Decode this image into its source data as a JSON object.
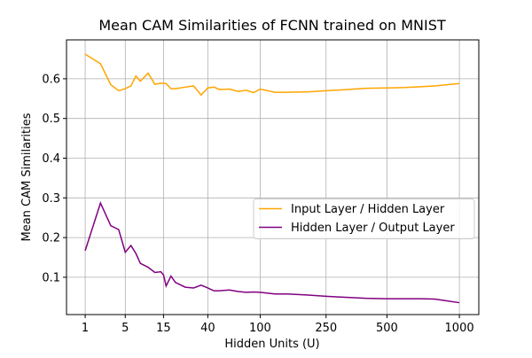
{
  "chart_data": {
    "type": "line",
    "title": "Mean CAM Similarities of FCNN trained on MNIST",
    "x_label": "Hidden Units (U)",
    "y_label": "Mean CAM Similarities",
    "x": [
      1,
      2,
      3,
      4,
      5,
      6,
      7,
      8,
      10,
      12,
      14,
      15,
      16,
      18,
      20,
      25,
      30,
      35,
      40,
      45,
      50,
      60,
      70,
      80,
      90,
      100,
      125,
      150,
      200,
      250,
      300,
      400,
      500,
      600,
      700,
      800,
      1000
    ],
    "series": [
      {
        "name": "Input Layer / Hidden Layer",
        "color": "#ffa500",
        "values": [
          0.662,
          0.638,
          0.585,
          0.57,
          0.575,
          0.582,
          0.607,
          0.594,
          0.614,
          0.586,
          0.589,
          0.588,
          0.588,
          0.575,
          0.575,
          0.579,
          0.582,
          0.559,
          0.577,
          0.579,
          0.573,
          0.574,
          0.568,
          0.571,
          0.565,
          0.574,
          0.566,
          0.566,
          0.567,
          0.57,
          0.572,
          0.576,
          0.577,
          0.578,
          0.58,
          0.582,
          0.588
        ]
      },
      {
        "name": "Hidden Layer / Output Layer",
        "color": "#800080",
        "values": [
          0.167,
          0.287,
          0.23,
          0.22,
          0.163,
          0.18,
          0.16,
          0.135,
          0.125,
          0.112,
          0.114,
          0.106,
          0.078,
          0.103,
          0.087,
          0.075,
          0.073,
          0.08,
          0.073,
          0.066,
          0.066,
          0.068,
          0.064,
          0.062,
          0.063,
          0.062,
          0.058,
          0.058,
          0.055,
          0.052,
          0.05,
          0.047,
          0.046,
          0.046,
          0.046,
          0.045,
          0.036
        ]
      }
    ],
    "xscale_power": 0.25,
    "xlim": [
      0.35,
      1182
    ],
    "xticks": [
      1,
      5,
      15,
      40,
      100,
      250,
      500,
      1000
    ],
    "ylim": [
      0.006,
      0.698
    ],
    "yticks": [
      0.1,
      0.2,
      0.3,
      0.4,
      0.5,
      0.6
    ],
    "grid": true,
    "legend": "center right"
  }
}
